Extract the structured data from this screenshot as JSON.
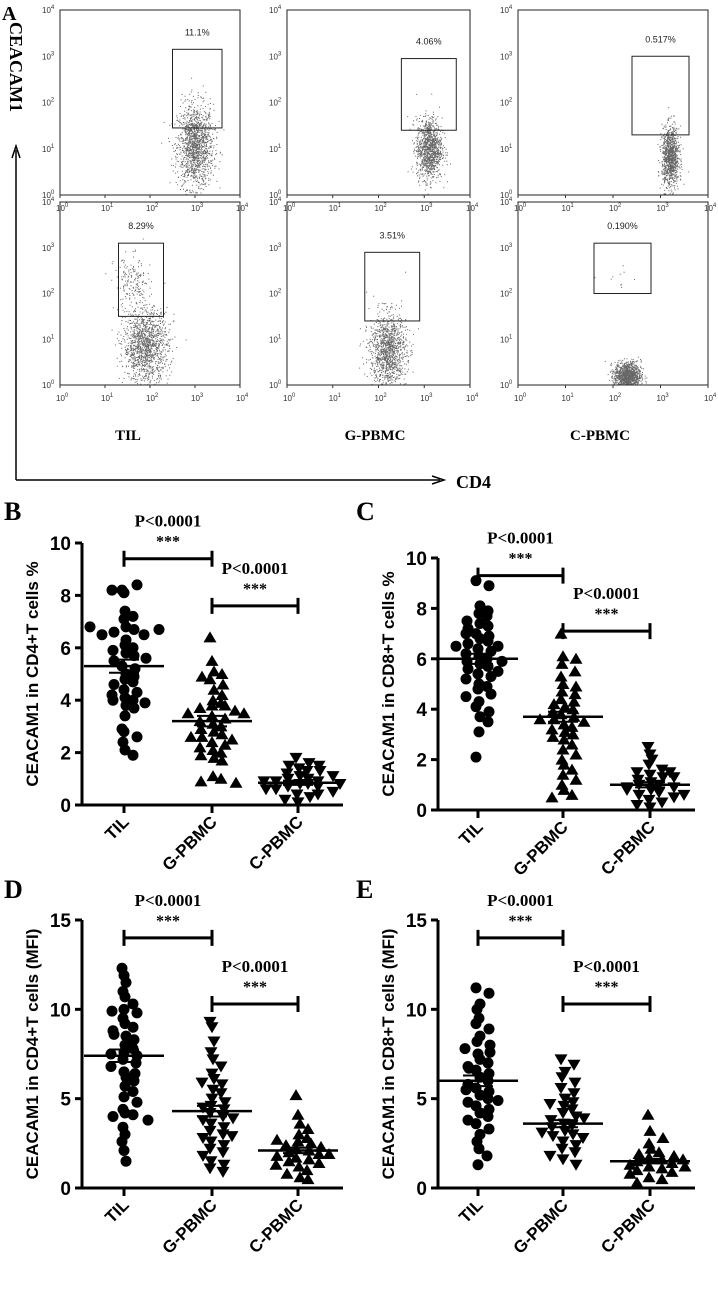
{
  "chart_data": [
    {
      "type": "scatter",
      "panel": "A",
      "kind": "flow-cytometry",
      "ylabel": "CEACAM1",
      "xlabel": "CD4",
      "tick_base": "10",
      "tick_exponents": [
        "0",
        "1",
        "2",
        "3",
        "4"
      ],
      "axis_range_log10": [
        0,
        4
      ],
      "columns": [
        "TIL",
        "G-PBMC",
        "C-PBMC"
      ],
      "plots": [
        {
          "row": 0,
          "col": 0,
          "gate_percent": "11.1%",
          "gate_log10": {
            "x": [
              2.5,
              3.6
            ],
            "y": [
              1.45,
              3.15
            ]
          },
          "clusters": [
            {
              "cx": 3.0,
              "cy": 1.05,
              "sx": 0.2,
              "sy": 0.45,
              "n": 1400
            }
          ]
        },
        {
          "row": 0,
          "col": 1,
          "gate_percent": "4.06%",
          "gate_log10": {
            "x": [
              2.5,
              3.7
            ],
            "y": [
              1.4,
              2.95
            ]
          },
          "clusters": [
            {
              "cx": 3.1,
              "cy": 1.0,
              "sx": 0.14,
              "sy": 0.33,
              "n": 1100
            }
          ]
        },
        {
          "row": 0,
          "col": 2,
          "gate_percent": "0.517%",
          "gate_log10": {
            "x": [
              2.4,
              3.6
            ],
            "y": [
              1.3,
              3.0
            ]
          },
          "clusters": [
            {
              "cx": 3.2,
              "cy": 0.8,
              "sx": 0.09,
              "sy": 0.33,
              "n": 1000
            }
          ]
        },
        {
          "row": 1,
          "col": 0,
          "gate_percent": "8.29%",
          "gate_log10": {
            "x": [
              1.3,
              2.3
            ],
            "y": [
              1.5,
              3.1
            ]
          },
          "clusters": [
            {
              "cx": 1.9,
              "cy": 0.85,
              "sx": 0.25,
              "sy": 0.4,
              "n": 1300
            },
            {
              "cx": 1.6,
              "cy": 2.2,
              "sx": 0.2,
              "sy": 0.3,
              "n": 180
            }
          ]
        },
        {
          "row": 1,
          "col": 1,
          "gate_percent": "3.51%",
          "gate_log10": {
            "x": [
              1.7,
              2.9
            ],
            "y": [
              1.4,
              2.9
            ]
          },
          "clusters": [
            {
              "cx": 2.2,
              "cy": 0.75,
              "sx": 0.2,
              "sy": 0.4,
              "n": 1200
            }
          ]
        },
        {
          "row": 1,
          "col": 2,
          "gate_percent": "0.190%",
          "gate_log10": {
            "x": [
              1.6,
              2.8
            ],
            "y": [
              2.0,
              3.1
            ]
          },
          "clusters": [
            {
              "cx": 2.3,
              "cy": 0.2,
              "sx": 0.14,
              "sy": 0.15,
              "n": 1100
            },
            {
              "cx": 2.1,
              "cy": 2.3,
              "sx": 0.2,
              "sy": 0.15,
              "n": 10
            }
          ]
        }
      ]
    },
    {
      "type": "scatter",
      "panel": "B",
      "ylabel": "CEACAM1 in CD4+T cells %",
      "ylim": [
        0,
        10
      ],
      "yticks": [
        "0",
        "2",
        "4",
        "6",
        "8",
        "10"
      ],
      "categories": [
        "TIL",
        "G-PBMC",
        "C-PBMC"
      ],
      "comparisons": [
        {
          "p": "P<0.0001",
          "stars": "***",
          "from": 0,
          "to": 1,
          "y": 9.4
        },
        {
          "p": "P<0.0001",
          "stars": "***",
          "from": 1,
          "to": 2,
          "y": 7.6
        }
      ],
      "series": [
        {
          "name": "TIL",
          "marker": "circle",
          "mean": 5.3,
          "sem": 0.25,
          "values": [
            8.2,
            8.1,
            8.4,
            8.2,
            7.4,
            7.2,
            7.1,
            6.8,
            6.7,
            6.6,
            6.5,
            6.5,
            6.7,
            6.8,
            6.1,
            6.0,
            5.9,
            5.8,
            5.7,
            5.5,
            5.3,
            5.2,
            5.0,
            4.9,
            4.8,
            4.7,
            4.4,
            4.3,
            4.2,
            4.1,
            4.0,
            4.0,
            3.8,
            3.7,
            3.4,
            2.9,
            2.8,
            2.6,
            2.4,
            2.1,
            1.9,
            5.6,
            6.3,
            3.9,
            4.6
          ]
        },
        {
          "name": "G-PBMC",
          "marker": "triangle-up",
          "mean": 3.2,
          "sem": 0.2,
          "values": [
            6.4,
            5.5,
            5.1,
            5.0,
            4.9,
            4.8,
            4.6,
            4.4,
            4.2,
            4.0,
            3.9,
            3.8,
            3.8,
            3.7,
            3.6,
            3.5,
            3.4,
            3.3,
            3.2,
            3.1,
            3.0,
            2.9,
            2.8,
            2.7,
            2.6,
            2.5,
            2.4,
            2.3,
            2.2,
            2.1,
            2.0,
            1.9,
            1.8,
            1.7,
            1.1,
            1.0,
            0.9,
            0.85,
            3.5,
            2.6
          ]
        },
        {
          "name": "C-PBMC",
          "marker": "triangle-down",
          "mean": 0.85,
          "sem": 0.08,
          "values": [
            1.8,
            1.6,
            1.5,
            1.5,
            1.4,
            1.3,
            1.2,
            1.1,
            1.0,
            1.0,
            0.9,
            0.9,
            0.8,
            0.8,
            0.7,
            0.7,
            0.6,
            0.5,
            0.4,
            0.3,
            0.2,
            0.1,
            1.1,
            0.9,
            0.6,
            0.4,
            1.3,
            0.8
          ]
        }
      ]
    },
    {
      "type": "scatter",
      "panel": "C",
      "ylabel": "CEACAM1 in CD8+T cells %",
      "ylim": [
        0,
        10
      ],
      "yticks": [
        "0",
        "2",
        "4",
        "6",
        "8",
        "10"
      ],
      "categories": [
        "TIL",
        "G-PBMC",
        "C-PBMC"
      ],
      "comparisons": [
        {
          "p": "P<0.0001",
          "stars": "***",
          "from": 0,
          "to": 1,
          "y": 9.3
        },
        {
          "p": "P<0.0001",
          "stars": "***",
          "from": 1,
          "to": 2,
          "y": 7.1
        }
      ],
      "series": [
        {
          "name": "TIL",
          "marker": "circle",
          "mean": 6.0,
          "sem": 0.2,
          "values": [
            9.1,
            8.9,
            8.1,
            7.9,
            7.8,
            7.7,
            7.5,
            7.4,
            7.3,
            7.2,
            7.0,
            6.9,
            6.8,
            6.7,
            6.6,
            6.5,
            6.4,
            6.3,
            6.2,
            6.1,
            6.0,
            5.9,
            5.8,
            5.7,
            5.6,
            5.5,
            5.4,
            5.3,
            5.2,
            5.0,
            4.9,
            4.8,
            4.6,
            4.5,
            4.3,
            4.1,
            3.9,
            3.7,
            3.5,
            3.1,
            2.1,
            6.5,
            5.9,
            7.0
          ]
        },
        {
          "name": "G-PBMC",
          "marker": "triangle-up",
          "mean": 3.7,
          "sem": 0.2,
          "values": [
            7.0,
            6.1,
            6.0,
            5.8,
            5.5,
            5.3,
            5.0,
            4.9,
            4.7,
            4.6,
            4.4,
            4.3,
            4.1,
            4.0,
            3.9,
            3.8,
            3.7,
            3.6,
            3.5,
            3.4,
            3.3,
            3.2,
            3.1,
            3.0,
            2.8,
            2.6,
            2.4,
            2.2,
            2.0,
            1.8,
            1.6,
            1.4,
            1.2,
            1.0,
            0.8,
            0.6,
            0.5,
            4.2,
            3.6,
            2.9
          ]
        },
        {
          "name": "C-PBMC",
          "marker": "triangle-down",
          "mean": 1.0,
          "sem": 0.1,
          "values": [
            2.5,
            2.2,
            2.0,
            1.8,
            1.6,
            1.5,
            1.4,
            1.3,
            1.2,
            1.1,
            1.0,
            1.0,
            0.9,
            0.9,
            0.8,
            0.7,
            0.6,
            0.5,
            0.4,
            0.3,
            0.2,
            0.1,
            1.3,
            0.8,
            0.6,
            1.5
          ]
        }
      ]
    },
    {
      "type": "scatter",
      "panel": "D",
      "ylabel": "CEACAM1 in CD4+T cells (MFI)",
      "ylim": [
        0,
        15
      ],
      "yticks": [
        "0",
        "5",
        "10",
        "15"
      ],
      "categories": [
        "TIL",
        "G-PBMC",
        "C-PBMC"
      ],
      "comparisons": [
        {
          "p": "P<0.0001",
          "stars": "***",
          "from": 0,
          "to": 1,
          "y": 14.0
        },
        {
          "p": "P<0.0001",
          "stars": "***",
          "from": 1,
          "to": 2,
          "y": 10.3
        }
      ],
      "series": [
        {
          "name": "TIL",
          "marker": "circle",
          "mean": 7.4,
          "sem": 0.35,
          "values": [
            12.3,
            11.9,
            11.5,
            11.0,
            10.7,
            10.3,
            10.0,
            9.8,
            9.5,
            9.2,
            9.0,
            8.8,
            8.5,
            8.3,
            8.0,
            7.8,
            7.6,
            7.4,
            7.2,
            7.0,
            6.8,
            6.5,
            6.2,
            6.0,
            5.7,
            5.4,
            5.1,
            4.8,
            4.4,
            4.2,
            4.1,
            4.0,
            3.8,
            3.4,
            3.0,
            2.6,
            2.1,
            1.5,
            9.9,
            8.6,
            7.5,
            6.4
          ]
        },
        {
          "name": "G-PBMC",
          "marker": "triangle-down",
          "mean": 4.3,
          "sem": 0.3,
          "values": [
            9.3,
            9.0,
            8.2,
            7.6,
            7.2,
            6.8,
            6.4,
            6.1,
            5.8,
            5.5,
            5.3,
            5.0,
            4.8,
            4.6,
            4.4,
            4.2,
            4.0,
            3.8,
            3.6,
            3.4,
            3.2,
            3.0,
            2.8,
            2.6,
            2.4,
            2.2,
            2.0,
            1.8,
            1.5,
            1.3,
            1.1,
            0.9,
            4.5,
            3.9,
            5.9,
            2.9
          ]
        },
        {
          "name": "C-PBMC",
          "marker": "triangle-up",
          "mean": 2.1,
          "sem": 0.15,
          "values": [
            5.2,
            4.1,
            3.6,
            3.3,
            3.0,
            2.8,
            2.6,
            2.5,
            2.4,
            2.3,
            2.2,
            2.1,
            2.0,
            1.9,
            1.8,
            1.7,
            1.6,
            1.5,
            1.4,
            1.2,
            1.0,
            0.8,
            0.6,
            0.5,
            2.7,
            1.9,
            1.3
          ]
        }
      ]
    },
    {
      "type": "scatter",
      "panel": "E",
      "ylabel": "CEACAM1 in CD8+T cells (MFI)",
      "ylim": [
        0,
        15
      ],
      "yticks": [
        "0",
        "5",
        "10",
        "15"
      ],
      "categories": [
        "TIL",
        "G-PBMC",
        "C-PBMC"
      ],
      "comparisons": [
        {
          "p": "P<0.0001",
          "stars": "***",
          "from": 0,
          "to": 1,
          "y": 14.0
        },
        {
          "p": "P<0.0001",
          "stars": "***",
          "from": 1,
          "to": 2,
          "y": 10.3
        }
      ],
      "series": [
        {
          "name": "TIL",
          "marker": "circle",
          "mean": 6.0,
          "sem": 0.3,
          "values": [
            11.2,
            10.9,
            10.3,
            10.0,
            9.5,
            9.2,
            8.9,
            8.5,
            8.2,
            8.0,
            7.8,
            7.5,
            7.2,
            7.0,
            6.8,
            6.6,
            6.4,
            6.2,
            6.0,
            5.8,
            5.6,
            5.4,
            5.2,
            5.0,
            4.8,
            4.6,
            4.4,
            4.2,
            4.0,
            3.8,
            3.6,
            3.3,
            3.0,
            2.6,
            2.2,
            1.8,
            1.3,
            6.7,
            5.5,
            7.6,
            4.9
          ]
        },
        {
          "name": "G-PBMC",
          "marker": "triangle-down",
          "mean": 3.6,
          "sem": 0.2,
          "values": [
            7.2,
            6.9,
            6.5,
            6.2,
            5.9,
            5.6,
            5.3,
            5.0,
            4.8,
            4.6,
            4.4,
            4.2,
            4.0,
            3.8,
            3.6,
            3.5,
            3.4,
            3.2,
            3.0,
            2.9,
            2.8,
            2.6,
            2.4,
            2.2,
            2.0,
            1.8,
            1.6,
            1.3,
            3.9,
            3.1,
            4.7
          ]
        },
        {
          "name": "C-PBMC",
          "marker": "triangle-up",
          "mean": 1.5,
          "sem": 0.12,
          "values": [
            4.1,
            3.2,
            2.8,
            2.5,
            2.2,
            2.0,
            1.9,
            1.8,
            1.7,
            1.6,
            1.5,
            1.4,
            1.3,
            1.2,
            1.1,
            1.0,
            0.9,
            0.8,
            0.6,
            0.5,
            0.3,
            1.6,
            1.2
          ]
        }
      ]
    }
  ]
}
